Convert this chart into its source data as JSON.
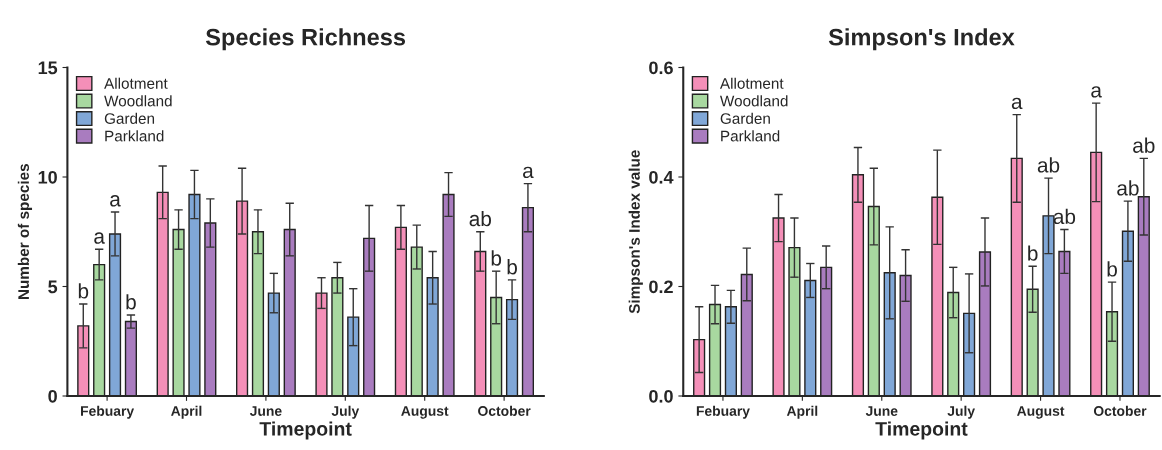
{
  "chart_data": [
    {
      "type": "bar",
      "title": "Species Richness",
      "xlabel": "Timepoint",
      "ylabel": "Number of species",
      "categories": [
        "Febuary",
        "April",
        "June",
        "July",
        "August",
        "October"
      ],
      "ylim": [
        0,
        15
      ],
      "yticks": [
        0,
        5,
        10,
        15
      ],
      "legend": "top left",
      "grid": false,
      "series": [
        {
          "name": "Allotment",
          "color": "#f48fb8",
          "values": [
            3.2,
            9.3,
            8.9,
            4.7,
            7.7,
            6.6
          ],
          "errors": [
            1.0,
            1.2,
            1.5,
            0.7,
            1.0,
            0.9
          ],
          "value_labels": [
            "b",
            null,
            null,
            null,
            null,
            "ab"
          ]
        },
        {
          "name": "Woodland",
          "color": "#a8d8a0",
          "values": [
            6.0,
            7.6,
            7.5,
            5.4,
            6.8,
            4.5
          ],
          "errors": [
            0.7,
            0.9,
            1.0,
            0.7,
            1.0,
            1.2
          ],
          "value_labels": [
            "a",
            null,
            null,
            null,
            null,
            "b"
          ]
        },
        {
          "name": "Garden",
          "color": "#80a7d7",
          "values": [
            7.4,
            9.2,
            4.7,
            3.6,
            5.4,
            4.4
          ],
          "errors": [
            1.0,
            1.1,
            0.9,
            1.3,
            1.2,
            0.9
          ],
          "value_labels": [
            "a",
            null,
            null,
            null,
            null,
            "b"
          ]
        },
        {
          "name": "Parkland",
          "color": "#a97cbf",
          "values": [
            3.4,
            7.9,
            7.6,
            7.2,
            9.2,
            8.6
          ],
          "errors": [
            0.3,
            1.1,
            1.2,
            1.5,
            1.0,
            1.1
          ],
          "value_labels": [
            "b",
            null,
            null,
            null,
            null,
            "a"
          ]
        }
      ]
    },
    {
      "type": "bar",
      "title": "Simpson's Index",
      "xlabel": "Timepoint",
      "ylabel": "Simpson's Index value",
      "categories": [
        "Febuary",
        "April",
        "June",
        "July",
        "August",
        "October"
      ],
      "ylim": [
        0,
        0.6
      ],
      "yticks": [
        {
          "value": 0,
          "label": "0.0"
        },
        0.2,
        0.4,
        0.6
      ],
      "legend": "top left",
      "grid": false,
      "series": [
        {
          "name": "Allotment",
          "color": "#f48fb8",
          "values": [
            0.103,
            0.325,
            0.404,
            0.363,
            0.434,
            0.445
          ],
          "errors": [
            0.06,
            0.043,
            0.05,
            0.086,
            0.08,
            0.09
          ],
          "value_labels": [
            null,
            null,
            null,
            null,
            "a",
            "a"
          ]
        },
        {
          "name": "Woodland",
          "color": "#a8d8a0",
          "values": [
            0.167,
            0.271,
            0.346,
            0.189,
            0.195,
            0.154
          ],
          "errors": [
            0.035,
            0.054,
            0.07,
            0.046,
            0.042,
            0.054
          ],
          "value_labels": [
            null,
            null,
            null,
            null,
            "b",
            "b"
          ]
        },
        {
          "name": "Garden",
          "color": "#80a7d7",
          "values": [
            0.163,
            0.211,
            0.225,
            0.151,
            0.329,
            0.301
          ],
          "errors": [
            0.03,
            0.031,
            0.084,
            0.072,
            0.069,
            0.055
          ],
          "value_labels": [
            null,
            null,
            null,
            null,
            "ab",
            "ab"
          ]
        },
        {
          "name": "Parkland",
          "color": "#a97cbf",
          "values": [
            0.222,
            0.235,
            0.22,
            0.263,
            0.264,
            0.364
          ],
          "errors": [
            0.048,
            0.039,
            0.047,
            0.062,
            0.04,
            0.07
          ],
          "value_labels": [
            null,
            null,
            null,
            null,
            "ab",
            "ab"
          ]
        }
      ]
    }
  ]
}
